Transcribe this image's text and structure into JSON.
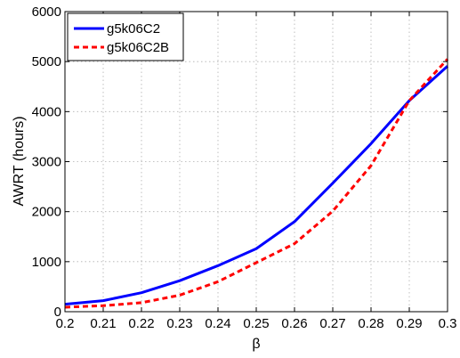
{
  "chart_data": {
    "type": "line",
    "title": "",
    "xlabel": "β",
    "ylabel": "AWRT (hours)",
    "xlim": [
      0.2,
      0.3
    ],
    "ylim": [
      0,
      6000
    ],
    "xticks": [
      "0.2",
      "0.21",
      "0.22",
      "0.23",
      "0.24",
      "0.25",
      "0.26",
      "0.27",
      "0.28",
      "0.29",
      "0.3"
    ],
    "yticks": [
      "0",
      "1000",
      "2000",
      "3000",
      "4000",
      "5000",
      "6000"
    ],
    "grid": true,
    "legend_position": "top-left",
    "x": [
      0.2,
      0.21,
      0.22,
      0.23,
      0.24,
      0.25,
      0.26,
      0.27,
      0.28,
      0.29,
      0.3
    ],
    "series": [
      {
        "name": "g5k06C2",
        "color": "#0000ff",
        "style": "solid",
        "values": [
          150,
          220,
          380,
          620,
          920,
          1260,
          1800,
          2570,
          3360,
          4220,
          4910
        ]
      },
      {
        "name": "g5k06C2B",
        "color": "#ff0000",
        "style": "dashed",
        "values": [
          90,
          120,
          180,
          330,
          600,
          980,
          1360,
          2010,
          2920,
          4220,
          5050
        ]
      }
    ]
  }
}
